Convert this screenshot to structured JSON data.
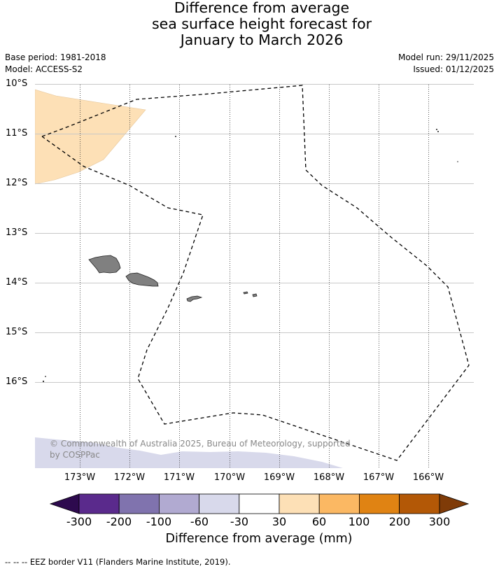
{
  "title": {
    "line1": "Difference from average",
    "line2": "sea surface height forecast for",
    "line3": "January to March 2026"
  },
  "meta": {
    "base_period": "Base period: 1981-2018",
    "model": "Model: ACCESS-S2",
    "model_run": "Model run: 29/11/2025",
    "issued": "Issued: 01/12/2025"
  },
  "map": {
    "lat_labels": [
      "10°S",
      "11°S",
      "12°S",
      "13°S",
      "14°S",
      "15°S",
      "16°S"
    ],
    "lon_labels": [
      "173°W",
      "172°W",
      "171°W",
      "170°W",
      "169°W",
      "168°W",
      "167°W",
      "166°W"
    ],
    "credit": "© Commonwealth of Australia 2025, Bureau of Meteorology, supported by COSPPac",
    "colors": {
      "land": "#808080",
      "anomaly_30_60": "#fde0b6",
      "anomaly_neg30_neg60": "#d8d9eb"
    }
  },
  "colorbar": {
    "ticks": [
      "-300",
      "-200",
      "-100",
      "-60",
      "-30",
      "30",
      "60",
      "100",
      "200",
      "300"
    ],
    "colors": [
      "#2d0a4e",
      "#5a2a8c",
      "#8073ae",
      "#b1aad1",
      "#d8d9eb",
      "#ffffff",
      "#fde0b6",
      "#fbb863",
      "#e08313",
      "#b35806",
      "#7f3b08"
    ],
    "title": "Difference from average (mm)"
  },
  "footnote": "--  --  -- EEZ border V11 (Flanders Marine Institute, 2019)."
}
